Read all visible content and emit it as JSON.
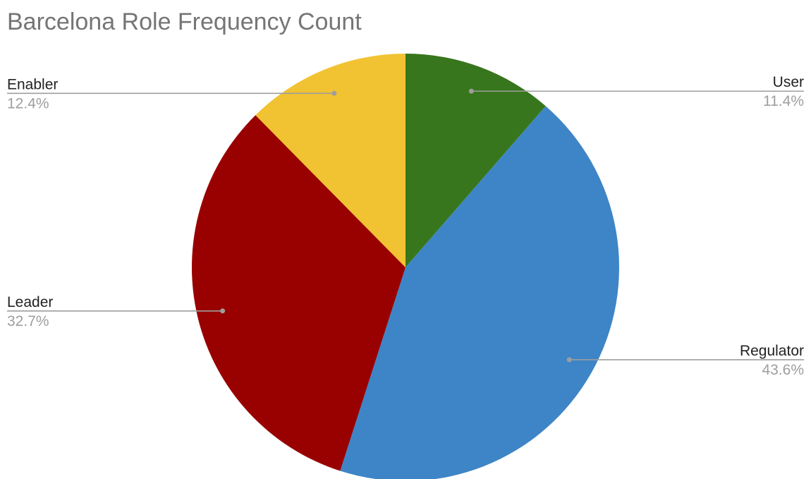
{
  "chart_data": {
    "type": "pie",
    "title": "Barcelona Role Frequency Count",
    "start_angle_deg": 0,
    "direction": "clockwise",
    "slices": [
      {
        "label": "User",
        "value": 11.4,
        "display": "11.4%",
        "color": "#38761d",
        "side": "right"
      },
      {
        "label": "Regulator",
        "value": 43.6,
        "display": "43.6%",
        "color": "#3d85c6",
        "side": "right"
      },
      {
        "label": "Leader",
        "value": 32.7,
        "display": "32.7%",
        "color": "#990000",
        "side": "left"
      },
      {
        "label": "Enabler",
        "value": 12.4,
        "display": "12.4%",
        "color": "#f1c232",
        "side": "left"
      }
    ],
    "legend": "labels-outside-with-leader-lines"
  }
}
